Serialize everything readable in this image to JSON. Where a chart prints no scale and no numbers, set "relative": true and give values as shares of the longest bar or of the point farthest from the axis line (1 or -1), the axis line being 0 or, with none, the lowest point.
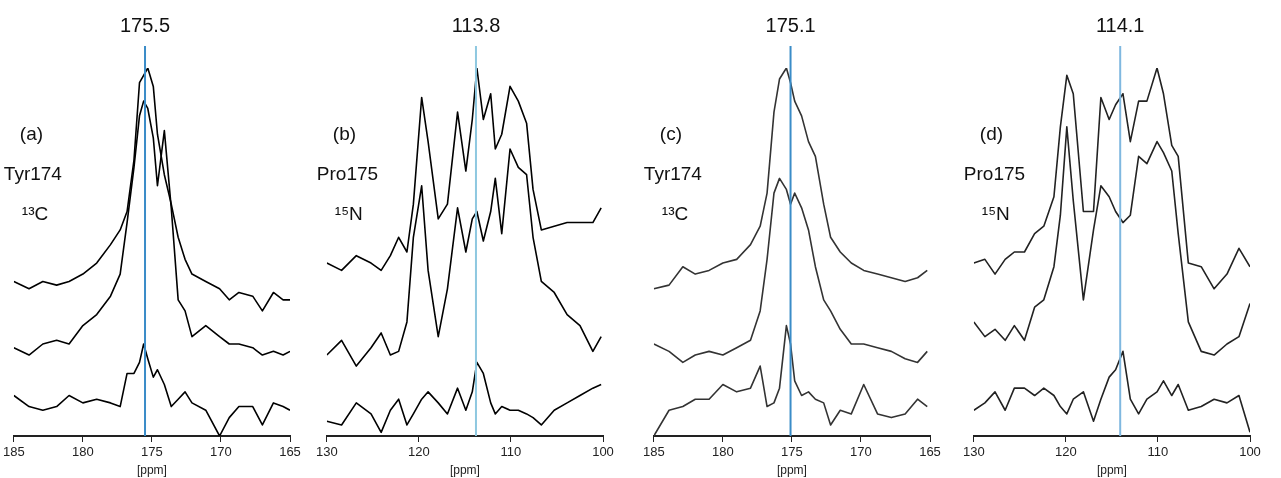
{
  "chart_data": [
    {
      "type": "line",
      "relative": true,
      "marker": "none",
      "grid": false,
      "legend": false,
      "tick_labels": "x",
      "xlabel": "[ppm]",
      "xlim": [
        185,
        165
      ],
      "xticks": [
        185,
        180,
        175,
        170,
        165
      ],
      "annotations": [
        "(a)",
        "Tyr174",
        "¹³C"
      ],
      "ref_lines": [
        {
          "axis": "x",
          "value": 175.5,
          "label": "175.5",
          "color": "#3a8cc8"
        }
      ],
      "x": [
        185,
        183.9,
        182.9,
        181.9,
        181.0,
        180.0,
        179.0,
        178.0,
        177.3,
        176.8,
        176.3,
        175.9,
        175.6,
        175.3,
        174.9,
        174.6,
        174.1,
        173.6,
        173.1,
        172.6,
        172.1,
        171.1,
        170.1,
        169.4,
        168.7,
        167.7,
        167.0,
        166.2,
        165.5,
        165.0
      ],
      "series": [
        {
          "color": "#000000",
          "values": [
            0.42,
            0.4,
            0.42,
            0.41,
            0.42,
            0.44,
            0.47,
            0.52,
            0.56,
            0.61,
            0.75,
            0.96,
            0.98,
            1.0,
            0.95,
            0.82,
            0.71,
            0.63,
            0.54,
            0.48,
            0.44,
            0.42,
            0.4,
            0.37,
            0.39,
            0.38,
            0.34,
            0.39,
            0.37,
            0.37
          ]
        },
        {
          "color": "#000000",
          "values": [
            0.24,
            0.22,
            0.25,
            0.26,
            0.25,
            0.3,
            0.33,
            0.38,
            0.44,
            0.58,
            0.73,
            0.87,
            0.91,
            0.89,
            0.81,
            0.68,
            0.83,
            0.62,
            0.37,
            0.34,
            0.27,
            0.3,
            0.27,
            0.25,
            0.25,
            0.24,
            0.22,
            0.23,
            0.22,
            0.23
          ]
        },
        {
          "color": "#000000",
          "values": [
            0.11,
            0.08,
            0.07,
            0.08,
            0.11,
            0.09,
            0.1,
            0.09,
            0.08,
            0.17,
            0.17,
            0.2,
            0.25,
            0.21,
            0.16,
            0.18,
            0.14,
            0.08,
            0.1,
            0.12,
            0.09,
            0.07,
            0,
            0.05,
            0.08,
            0.08,
            0.03,
            0.09,
            0.08,
            0.07
          ]
        }
      ]
    },
    {
      "type": "line",
      "relative": true,
      "marker": "none",
      "grid": false,
      "legend": false,
      "tick_labels": "x",
      "xlabel": "[ppm]",
      "xlim": [
        130,
        100
      ],
      "xticks": [
        130,
        120,
        110,
        100
      ],
      "annotations": [
        "(b)",
        "Pro175",
        "¹⁵N"
      ],
      "ref_lines": [
        {
          "axis": "x",
          "value": 113.8,
          "label": "113.8",
          "color": "#8ec8e0"
        }
      ],
      "x": [
        130,
        128.4,
        126.8,
        125.2,
        124.1,
        123.1,
        122.2,
        121.3,
        120.6,
        119.7,
        119.0,
        117.9,
        116.9,
        115.8,
        114.9,
        114.2,
        113.7,
        113.0,
        112.2,
        111.7,
        111.0,
        110.1,
        109.2,
        108.3,
        107.6,
        106.7,
        105.3,
        103.9,
        102.5,
        101.1,
        100.2
      ],
      "series": [
        {
          "color": "#000000",
          "values": [
            0.47,
            0.45,
            0.49,
            0.47,
            0.45,
            0.49,
            0.54,
            0.5,
            0.63,
            0.92,
            0.8,
            0.59,
            0.63,
            0.88,
            0.72,
            0.86,
            1.0,
            0.86,
            0.93,
            0.78,
            0.82,
            0.95,
            0.91,
            0.85,
            0.67,
            0.56,
            0.57,
            0.58,
            0.58,
            0.58,
            0.62
          ]
        },
        {
          "color": "#000000",
          "values": [
            0.22,
            0.26,
            0.19,
            0.24,
            0.28,
            0.22,
            0.23,
            0.31,
            0.54,
            0.68,
            0.45,
            0.27,
            0.4,
            0.62,
            0.5,
            0.59,
            0.61,
            0.53,
            0.61,
            0.7,
            0.55,
            0.78,
            0.73,
            0.71,
            0.54,
            0.42,
            0.39,
            0.33,
            0.3,
            0.23,
            0.27
          ]
        },
        {
          "color": "#000000",
          "values": [
            0.04,
            0.03,
            0.09,
            0.06,
            0.01,
            0.07,
            0.1,
            0.03,
            0.06,
            0.1,
            0.12,
            0.09,
            0.06,
            0.13,
            0.07,
            0.12,
            0.2,
            0.17,
            0.09,
            0.06,
            0.08,
            0.07,
            0.07,
            0.06,
            0.05,
            0.03,
            0.07,
            0.09,
            0.11,
            0.13,
            0.14
          ]
        }
      ]
    },
    {
      "type": "line",
      "relative": true,
      "marker": "none",
      "grid": false,
      "legend": false,
      "tick_labels": "x",
      "xlabel": "[ppm]",
      "xlim": [
        185,
        165
      ],
      "xticks": [
        185,
        180,
        175,
        170,
        165
      ],
      "annotations": [
        "(c)",
        "Tyr174",
        "¹³C"
      ],
      "ref_lines": [
        {
          "axis": "x",
          "value": 175.1,
          "label": "175.1",
          "color": "#3a8cc8"
        }
      ],
      "x": [
        185,
        183.9,
        182.9,
        182.0,
        181.0,
        180.0,
        179.0,
        178.0,
        177.3,
        176.8,
        176.3,
        175.9,
        175.4,
        175.1,
        174.8,
        174.3,
        173.8,
        173.3,
        172.7,
        172.2,
        171.5,
        170.7,
        169.8,
        168.8,
        167.8,
        166.8,
        165.9,
        165.2
      ],
      "series": [
        {
          "color": "#333333",
          "values": [
            0.4,
            0.41,
            0.46,
            0.44,
            0.45,
            0.47,
            0.48,
            0.52,
            0.57,
            0.66,
            0.88,
            0.97,
            1.0,
            0.96,
            0.91,
            0.87,
            0.8,
            0.76,
            0.63,
            0.54,
            0.5,
            0.47,
            0.45,
            0.44,
            0.43,
            0.42,
            0.43,
            0.45
          ]
        },
        {
          "color": "#333333",
          "values": [
            0.25,
            0.23,
            0.2,
            0.22,
            0.23,
            0.22,
            0.24,
            0.26,
            0.34,
            0.48,
            0.66,
            0.7,
            0.67,
            0.63,
            0.66,
            0.62,
            0.56,
            0.46,
            0.37,
            0.34,
            0.29,
            0.25,
            0.25,
            0.24,
            0.23,
            0.21,
            0.2,
            0.23
          ]
        },
        {
          "color": "#333333",
          "values": [
            0,
            0.07,
            0.08,
            0.1,
            0.1,
            0.14,
            0.12,
            0.13,
            0.19,
            0.08,
            0.09,
            0.13,
            0.3,
            0.25,
            0.15,
            0.11,
            0.12,
            0.1,
            0.09,
            0.03,
            0.07,
            0.06,
            0.14,
            0.06,
            0.05,
            0.06,
            0.1,
            0.08
          ]
        }
      ]
    },
    {
      "type": "line",
      "relative": true,
      "marker": "none",
      "grid": false,
      "legend": false,
      "tick_labels": "x",
      "xlabel": "[ppm]",
      "xlim": [
        130,
        100
      ],
      "xticks": [
        130,
        120,
        110,
        100
      ],
      "annotations": [
        "(d)",
        "Pro175",
        "¹⁵N"
      ],
      "ref_lines": [
        {
          "axis": "x",
          "value": 114.1,
          "label": "114.1",
          "color": "#7fb8e0"
        }
      ],
      "x": [
        130,
        128.8,
        127.7,
        126.6,
        125.6,
        124.5,
        123.4,
        122.4,
        121.3,
        120.6,
        119.9,
        119.2,
        118.1,
        117.0,
        116.2,
        115.3,
        114.6,
        113.8,
        113.0,
        112.1,
        111.2,
        110.1,
        109.4,
        108.5,
        107.8,
        106.7,
        105.3,
        103.9,
        102.5,
        101.2,
        100.0
      ],
      "series": [
        {
          "color": "#222222",
          "values": [
            0.47,
            0.48,
            0.44,
            0.48,
            0.5,
            0.5,
            0.55,
            0.57,
            0.65,
            0.84,
            0.98,
            0.93,
            0.61,
            0.61,
            0.92,
            0.86,
            0.9,
            0.93,
            0.8,
            0.91,
            0.91,
            1.0,
            0.93,
            0.79,
            0.76,
            0.47,
            0.46,
            0.4,
            0.44,
            0.51,
            0.46
          ]
        },
        {
          "color": "#222222",
          "values": [
            0.31,
            0.27,
            0.29,
            0.26,
            0.3,
            0.26,
            0.35,
            0.37,
            0.46,
            0.6,
            0.84,
            0.64,
            0.37,
            0.56,
            0.68,
            0.65,
            0.61,
            0.58,
            0.6,
            0.76,
            0.74,
            0.8,
            0.77,
            0.72,
            0.55,
            0.31,
            0.23,
            0.22,
            0.25,
            0.27,
            0.36
          ]
        },
        {
          "color": "#222222",
          "values": [
            0.07,
            0.09,
            0.12,
            0.07,
            0.13,
            0.13,
            0.11,
            0.13,
            0.11,
            0.08,
            0.06,
            0.1,
            0.12,
            0.04,
            0.1,
            0.16,
            0.18,
            0.23,
            0.1,
            0.06,
            0.1,
            0.12,
            0.15,
            0.11,
            0.14,
            0.07,
            0.08,
            0.1,
            0.09,
            0.11,
            0.01
          ]
        }
      ]
    }
  ]
}
